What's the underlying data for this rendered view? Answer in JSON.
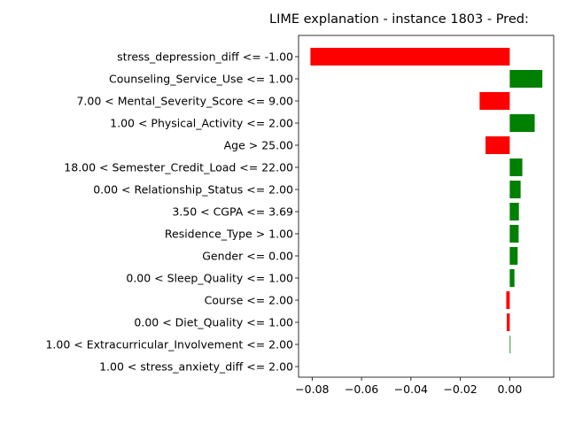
{
  "chart_data": {
    "type": "bar",
    "orientation": "horizontal",
    "title": "LIME explanation - instance 1803 - Pred:",
    "xlabel": "",
    "ylabel": "",
    "xlim": [
      -0.0855,
      0.0178
    ],
    "xticks": [
      -0.08,
      -0.06,
      -0.04,
      -0.02,
      0.0
    ],
    "xtick_labels": [
      "−0.08",
      "−0.06",
      "−0.04",
      "−0.02",
      "0.00"
    ],
    "grid": false,
    "legend": "none",
    "colors": {
      "positive": "#008000",
      "negative": "#ff0000"
    },
    "categories": [
      "stress_depression_diff <= -1.00",
      "Counseling_Service_Use <= 1.00",
      "7.00 < Mental_Severity_Score <= 9.00",
      "1.00 < Physical_Activity <= 2.00",
      "Age > 25.00",
      "18.00 < Semester_Credit_Load <= 22.00",
      "0.00 < Relationship_Status <= 2.00",
      "3.50 < CGPA <= 3.69",
      "Residence_Type > 1.00",
      "Gender <= 0.00",
      "0.00 < Sleep_Quality <= 1.00",
      "Course <= 2.00",
      "0.00 < Diet_Quality <= 1.00",
      "1.00 < Extracurricular_Involvement <= 2.00",
      "1.00 < stress_anxiety_diff <= 2.00"
    ],
    "values": [
      -0.0807,
      0.0132,
      -0.0122,
      0.0101,
      -0.0098,
      0.0051,
      0.0044,
      0.0037,
      0.0036,
      0.0032,
      0.0019,
      -0.0014,
      -0.0012,
      0.0003,
      0.0
    ]
  }
}
